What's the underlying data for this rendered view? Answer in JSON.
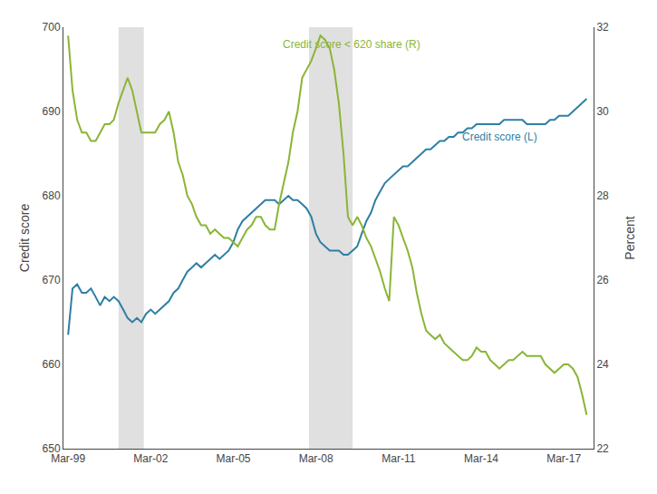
{
  "chart_data": {
    "type": "line",
    "y_label": "Credit score",
    "y2_label": "Percent",
    "xlim": [
      1999.0,
      2018.25
    ],
    "xticks": [
      {
        "value": 1999.17,
        "label": "Mar-99"
      },
      {
        "value": 2002.17,
        "label": "Mar-02"
      },
      {
        "value": 2005.17,
        "label": "Mar-05"
      },
      {
        "value": 2008.17,
        "label": "Mar-08"
      },
      {
        "value": 2011.17,
        "label": "Mar-11"
      },
      {
        "value": 2014.17,
        "label": "Mar-14"
      },
      {
        "value": 2017.17,
        "label": "Mar-17"
      }
    ],
    "ylim": [
      650,
      700
    ],
    "yticks": [
      650,
      660,
      670,
      680,
      690,
      700
    ],
    "y2lim": [
      22,
      32
    ],
    "y2ticks": [
      22,
      24,
      26,
      28,
      30,
      32
    ],
    "grid": false,
    "bands": [
      [
        2001.0,
        2001.917
      ],
      [
        2007.917,
        2009.5
      ]
    ],
    "bands_color": "lightgray",
    "x": [
      1999.17,
      1999.33,
      1999.5,
      1999.67,
      1999.83,
      2000.0,
      2000.17,
      2000.33,
      2000.5,
      2000.67,
      2000.83,
      2001.0,
      2001.17,
      2001.33,
      2001.5,
      2001.67,
      2001.83,
      2002.0,
      2002.17,
      2002.33,
      2002.5,
      2002.67,
      2002.83,
      2003.0,
      2003.17,
      2003.33,
      2003.5,
      2003.67,
      2003.83,
      2004.0,
      2004.17,
      2004.33,
      2004.5,
      2004.67,
      2004.83,
      2005.0,
      2005.17,
      2005.33,
      2005.5,
      2005.67,
      2005.83,
      2006.0,
      2006.17,
      2006.33,
      2006.5,
      2006.67,
      2006.83,
      2007.0,
      2007.17,
      2007.33,
      2007.5,
      2007.67,
      2007.83,
      2008.0,
      2008.17,
      2008.33,
      2008.5,
      2008.67,
      2008.83,
      2009.0,
      2009.17,
      2009.33,
      2009.5,
      2009.67,
      2009.83,
      2010.0,
      2010.17,
      2010.33,
      2010.5,
      2010.67,
      2010.83,
      2011.0,
      2011.17,
      2011.33,
      2011.5,
      2011.67,
      2011.83,
      2012.0,
      2012.17,
      2012.33,
      2012.5,
      2012.67,
      2012.83,
      2013.0,
      2013.17,
      2013.33,
      2013.5,
      2013.67,
      2013.83,
      2014.0,
      2014.17,
      2014.33,
      2014.5,
      2014.67,
      2014.83,
      2015.0,
      2015.17,
      2015.33,
      2015.5,
      2015.67,
      2015.83,
      2016.0,
      2016.17,
      2016.33,
      2016.5,
      2016.67,
      2016.83,
      2017.0,
      2017.17,
      2017.33,
      2017.5,
      2017.67,
      2017.83,
      2018.0
    ],
    "series": [
      {
        "color": "#2e7fa3",
        "axis": "y",
        "values": [
          663.5,
          669.0,
          669.5,
          668.5,
          668.5,
          669.0,
          668.0,
          667.0,
          668.0,
          667.5,
          668.0,
          667.5,
          666.5,
          665.5,
          665.0,
          665.5,
          665.0,
          666.0,
          666.5,
          666.0,
          666.5,
          667.0,
          667.5,
          668.5,
          669.0,
          670.0,
          671.0,
          671.5,
          672.0,
          671.5,
          672.0,
          672.5,
          673.0,
          672.5,
          673.0,
          673.5,
          674.5,
          676.0,
          677.0,
          677.5,
          678.0,
          678.5,
          679.0,
          679.5,
          679.5,
          679.5,
          679.0,
          679.5,
          680.0,
          679.5,
          679.5,
          679.0,
          678.5,
          677.5,
          675.5,
          674.5,
          674.0,
          673.5,
          673.5,
          673.5,
          673.0,
          673.0,
          673.5,
          674.0,
          675.5,
          677.0,
          678.0,
          679.5,
          680.5,
          681.5,
          682.0,
          682.5,
          683.0,
          683.5,
          683.5,
          684.0,
          684.5,
          685.0,
          685.5,
          685.5,
          686.0,
          686.5,
          686.5,
          687.0,
          687.0,
          687.5,
          687.5,
          688.0,
          688.0,
          688.5,
          688.5,
          688.5,
          688.5,
          688.5,
          688.5,
          689.0,
          689.0,
          689.0,
          689.0,
          689.0,
          688.5,
          688.5,
          688.5,
          688.5,
          688.5,
          689.0,
          689.0,
          689.5,
          689.5,
          689.5,
          690.0,
          690.5,
          691.0,
          691.5
        ]
      },
      {
        "color": "#8ab536",
        "axis": "y2",
        "values": [
          31.8,
          30.5,
          29.8,
          29.5,
          29.5,
          29.3,
          29.3,
          29.5,
          29.7,
          29.7,
          29.8,
          30.2,
          30.5,
          30.8,
          30.5,
          30.0,
          29.5,
          29.5,
          29.5,
          29.5,
          29.7,
          29.8,
          30.0,
          29.5,
          28.8,
          28.5,
          28.0,
          27.8,
          27.5,
          27.3,
          27.3,
          27.1,
          27.2,
          27.1,
          27.0,
          27.0,
          26.9,
          26.8,
          27.0,
          27.2,
          27.3,
          27.5,
          27.5,
          27.3,
          27.2,
          27.2,
          27.8,
          28.3,
          28.8,
          29.5,
          30.0,
          30.8,
          31.0,
          31.2,
          31.5,
          31.8,
          31.7,
          31.5,
          31.0,
          30.2,
          29.0,
          27.5,
          27.3,
          27.5,
          27.3,
          27.0,
          26.8,
          26.5,
          26.2,
          25.8,
          25.5,
          27.5,
          27.3,
          27.0,
          26.7,
          26.3,
          25.7,
          25.2,
          24.8,
          24.7,
          24.6,
          24.7,
          24.5,
          24.4,
          24.3,
          24.2,
          24.1,
          24.1,
          24.2,
          24.4,
          24.3,
          24.3,
          24.1,
          24.0,
          23.9,
          24.0,
          24.1,
          24.1,
          24.2,
          24.3,
          24.2,
          24.2,
          24.2,
          24.2,
          24.0,
          23.9,
          23.8,
          23.9,
          24.0,
          24.0,
          23.9,
          23.7,
          23.3,
          22.8
        ]
      }
    ],
    "annotations": [
      {
        "text": "Credit score < 620 share (R)",
        "x": 2006.9,
        "y": 31.4,
        "axis": "y2",
        "color": "#8ab536"
      },
      {
        "text": "Credit score (L)",
        "x": 2013.4,
        "y": 29.2,
        "axis": "y2",
        "color": "#2e7fa3"
      }
    ]
  }
}
